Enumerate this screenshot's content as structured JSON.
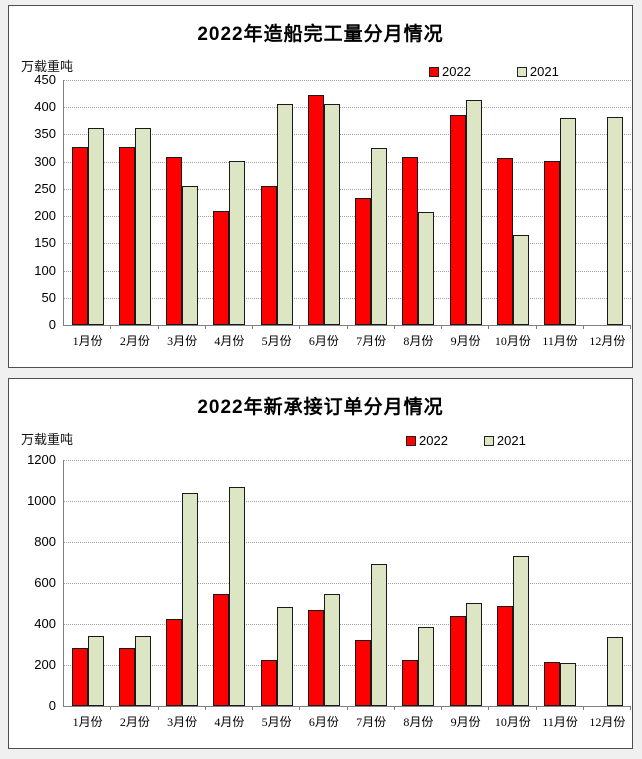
{
  "colors": {
    "series2022": "#fe0000",
    "series2021": "#dce6c4",
    "bar_border": "#1a1a1a",
    "gridline": "#a0a0a0",
    "axis": "#808080",
    "panel_border": "#4f4f4f",
    "background": "#eff0ef"
  },
  "chart_data": [
    {
      "type": "bar",
      "title": "2022年造船完工量分月情况",
      "unit_label": "万载重吨",
      "legend": [
        {
          "label": "2022"
        },
        {
          "label": "2021"
        }
      ],
      "categories": [
        "1月份",
        "2月份",
        "3月份",
        "4月份",
        "5月份",
        "6月份",
        "7月份",
        "8月份",
        "9月份",
        "10月份",
        "11月份",
        "12月份"
      ],
      "series": [
        {
          "name": "2022",
          "values": [
            327,
            327,
            308,
            210,
            256,
            422,
            234,
            309,
            386,
            307,
            302,
            null
          ]
        },
        {
          "name": "2021",
          "values": [
            362,
            362,
            255,
            302,
            406,
            406,
            326,
            208,
            413,
            166,
            380,
            382
          ]
        }
      ],
      "ylim": [
        0,
        450
      ],
      "ytick_step": 50,
      "yticks": [
        0,
        50,
        100,
        150,
        200,
        250,
        300,
        350,
        400,
        450
      ],
      "grid": true,
      "legend_position": "top-right"
    },
    {
      "type": "bar",
      "title": "2022年新承接订单分月情况",
      "unit_label": "万载重吨",
      "legend": [
        {
          "label": "2022"
        },
        {
          "label": "2021"
        }
      ],
      "categories": [
        "1月份",
        "2月份",
        "3月份",
        "4月份",
        "5月份",
        "6月份",
        "7月份",
        "8月份",
        "9月份",
        "10月份",
        "11月份",
        "12月份"
      ],
      "series": [
        {
          "name": "2022",
          "values": [
            285,
            285,
            425,
            545,
            225,
            470,
            320,
            225,
            440,
            490,
            215,
            null
          ]
        },
        {
          "name": "2021",
          "values": [
            340,
            340,
            1040,
            1070,
            485,
            545,
            695,
            385,
            500,
            730,
            210,
            335
          ]
        }
      ],
      "ylim": [
        0,
        1200
      ],
      "ytick_step": 200,
      "yticks": [
        0,
        200,
        400,
        600,
        800,
        1000,
        1200
      ],
      "grid": true,
      "legend_position": "top-right"
    }
  ]
}
